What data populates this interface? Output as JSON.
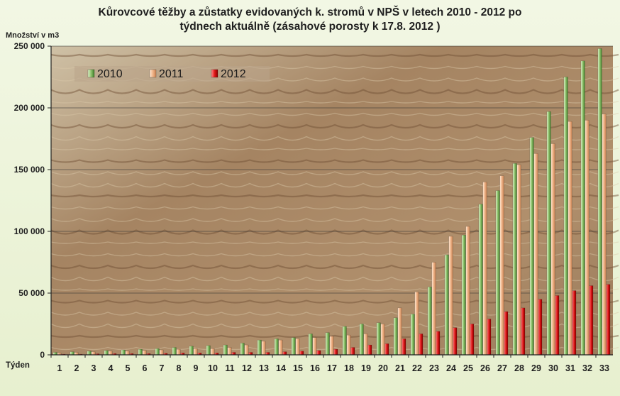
{
  "chart_data": {
    "type": "bar",
    "title": "Kůrovcové těžby a zůstatky evidovaných k. stromů v NPŠ v letech 2010 - 2012 po týdnech aktuálně (zásahové porosty k 17.8. 2012 )",
    "title_lines": [
      "Kůrovcové těžby a zůstatky evidovaných k. stromů v NPŠ v letech 2010 - 2012 po",
      "týdnech aktuálně (zásahové porosty k 17.8. 2012 )"
    ],
    "ylabel": "Množství v m3",
    "xlabel": "Týden",
    "ylim": [
      0,
      250000
    ],
    "yticks": [
      0,
      50000,
      100000,
      150000,
      200000,
      250000
    ],
    "ytick_labels": [
      "0",
      "50 000",
      "100 000",
      "150 000",
      "200 000",
      "250 000"
    ],
    "grid": true,
    "legend_position": "top-left",
    "categories": [
      "1",
      "2",
      "3",
      "4",
      "5",
      "6",
      "7",
      "8",
      "9",
      "10",
      "11",
      "12",
      "13",
      "14",
      "15",
      "16",
      "17",
      "18",
      "19",
      "20",
      "21",
      "22",
      "23",
      "24",
      "25",
      "26",
      "27",
      "28",
      "29",
      "30",
      "31",
      "32",
      "33"
    ],
    "series": [
      {
        "name": "2010",
        "color": "#6fae4a",
        "values": [
          2000,
          2500,
          3000,
          3500,
          4000,
          4500,
          5000,
          6000,
          7000,
          7500,
          8000,
          9500,
          12000,
          13000,
          14000,
          17000,
          18000,
          23000,
          25000,
          26000,
          30000,
          33000,
          55000,
          81000,
          97000,
          122000,
          133000,
          155000,
          176000,
          197000,
          225000,
          238000,
          248000
        ]
      },
      {
        "name": "2011",
        "color": "#f0b488",
        "values": [
          1500,
          2000,
          2500,
          3000,
          3000,
          3500,
          4000,
          4500,
          5000,
          5000,
          6000,
          8000,
          11000,
          12000,
          13000,
          14000,
          15000,
          16000,
          17000,
          25000,
          38000,
          51000,
          75000,
          96000,
          104000,
          140000,
          145000,
          154000,
          163000,
          171000,
          189000,
          190000,
          195000
        ]
      },
      {
        "name": "2012",
        "color": "#d81010",
        "values": [
          500,
          500,
          800,
          1000,
          1000,
          1000,
          1200,
          1500,
          1500,
          1500,
          2000,
          2000,
          2000,
          2500,
          3000,
          3500,
          4500,
          6000,
          8000,
          9000,
          13000,
          17000,
          19000,
          22000,
          25000,
          29000,
          35000,
          38000,
          45000,
          48000,
          52000,
          56000,
          57000
        ]
      }
    ]
  }
}
